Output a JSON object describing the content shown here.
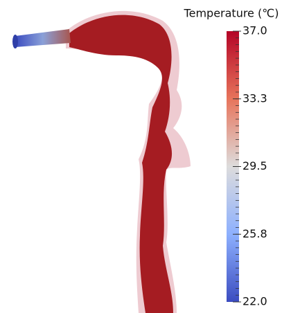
{
  "colorbar": {
    "title": "Temperature (℃)",
    "labels": [
      "37.0",
      "33.3",
      "29.5",
      "25.8",
      "22.0"
    ]
  }
}
